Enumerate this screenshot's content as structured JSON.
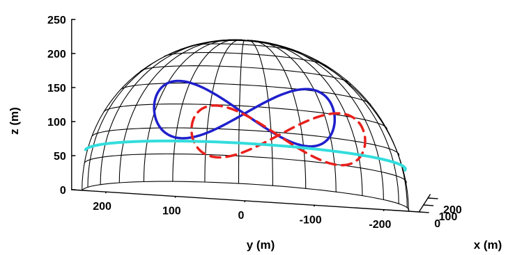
{
  "chart_data": {
    "type": "line",
    "projection": "3d",
    "xlabel": "x (m)",
    "ylabel": "y (m)",
    "zlabel": "z (m)",
    "xlim": [
      0,
      250
    ],
    "ylim": [
      -250,
      250
    ],
    "zlim": [
      0,
      250
    ],
    "xticks": [
      {
        "value": 0,
        "label": "0"
      },
      {
        "value": 100,
        "label": "100"
      },
      {
        "value": 200,
        "label": "200"
      }
    ],
    "yticks": [
      {
        "value": 200,
        "label": "200"
      },
      {
        "value": 100,
        "label": "100"
      },
      {
        "value": 0,
        "label": "0"
      },
      {
        "value": -100,
        "label": "-100"
      },
      {
        "value": -200,
        "label": "-200"
      }
    ],
    "zticks": [
      {
        "value": 0,
        "label": "0"
      },
      {
        "value": 50,
        "label": "50"
      },
      {
        "value": 100,
        "label": "100"
      },
      {
        "value": 150,
        "label": "150"
      },
      {
        "value": 200,
        "label": "200"
      },
      {
        "value": 250,
        "label": "250"
      }
    ],
    "grid": false,
    "hemisphere": {
      "radius": 235,
      "color": "#000000"
    },
    "series": [
      {
        "style": "solid",
        "color": "#1f1fcc",
        "shape": "figure-eight",
        "center": [
          -20,
          0,
          130
        ],
        "half_width_y": 130,
        "half_height_z": 42
      },
      {
        "style": "dashed",
        "color": "#e8201c",
        "shape": "figure-eight",
        "center": [
          40,
          -45,
          95
        ],
        "half_width_y": 125,
        "half_height_z": 38
      },
      {
        "style": "solid",
        "color": "#33dddd",
        "shape": "horizontal-circle",
        "altitude": 60,
        "radius": 230
      }
    ]
  }
}
